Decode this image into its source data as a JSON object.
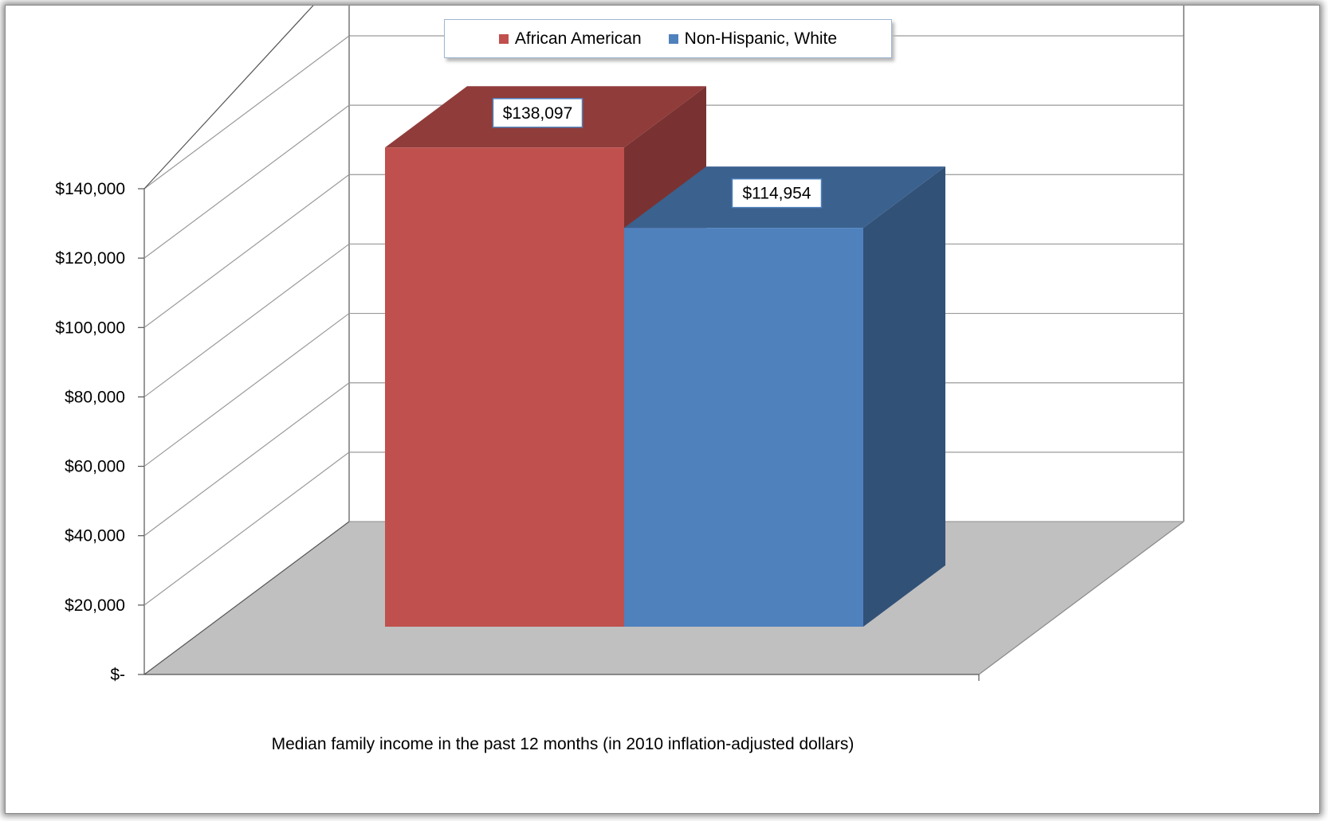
{
  "chart_data": {
    "type": "bar",
    "title": "",
    "xlabel": "Median family income in the past 12 months (in 2010 inflation-adjusted dollars)",
    "ylabel": "",
    "ylim": [
      0,
      140000
    ],
    "yticks": [
      0,
      20000,
      40000,
      60000,
      80000,
      100000,
      120000,
      140000
    ],
    "ytick_labels": [
      "$-",
      "$20,000",
      "$40,000",
      "$60,000",
      "$80,000",
      "$100,000",
      "$120,000",
      "$140,000"
    ],
    "categories": [
      "Median family income in the past 12 months (in 2010 inflation-adjusted dollars)"
    ],
    "series": [
      {
        "name": "African American",
        "values": [
          138097
        ],
        "label": "$138,097",
        "color": "#c0504d"
      },
      {
        "name": "Non-Hispanic, White",
        "values": [
          114954
        ],
        "label": "$114,954",
        "color": "#4f81bd"
      }
    ],
    "grid": true,
    "legend_position": "top",
    "style": "3d-clustered-column"
  }
}
